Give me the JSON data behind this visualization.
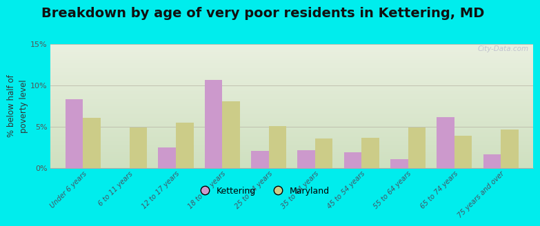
{
  "title": "Breakdown by age of very poor residents in Kettering, MD",
  "ylabel": "% below half of\npoverty level",
  "categories": [
    "Under 6 years",
    "6 to 11 years",
    "12 to 17 years",
    "18 to 24 years",
    "25 to 34 years",
    "35 to 44 years",
    "45 to 54 years",
    "55 to 64 years",
    "65 to 74 years",
    "75 years and over"
  ],
  "kettering": [
    8.3,
    0.0,
    2.5,
    10.7,
    2.1,
    2.2,
    1.9,
    1.1,
    6.2,
    1.7
  ],
  "maryland": [
    6.1,
    4.9,
    5.5,
    8.1,
    5.1,
    3.6,
    3.7,
    4.9,
    3.9,
    4.7
  ],
  "kettering_color": "#cc99cc",
  "maryland_color": "#cccc88",
  "background_outer": "#00eded",
  "bg_top": "#eaf0e0",
  "bg_bottom": "#cfe0c0",
  "ylim": [
    0,
    15
  ],
  "yticks": [
    0,
    5,
    10,
    15
  ],
  "ytick_labels": [
    "0%",
    "5%",
    "10%",
    "15%"
  ],
  "title_fontsize": 14,
  "ylabel_fontsize": 8.5,
  "bar_width": 0.38,
  "watermark": "City-Data.com"
}
